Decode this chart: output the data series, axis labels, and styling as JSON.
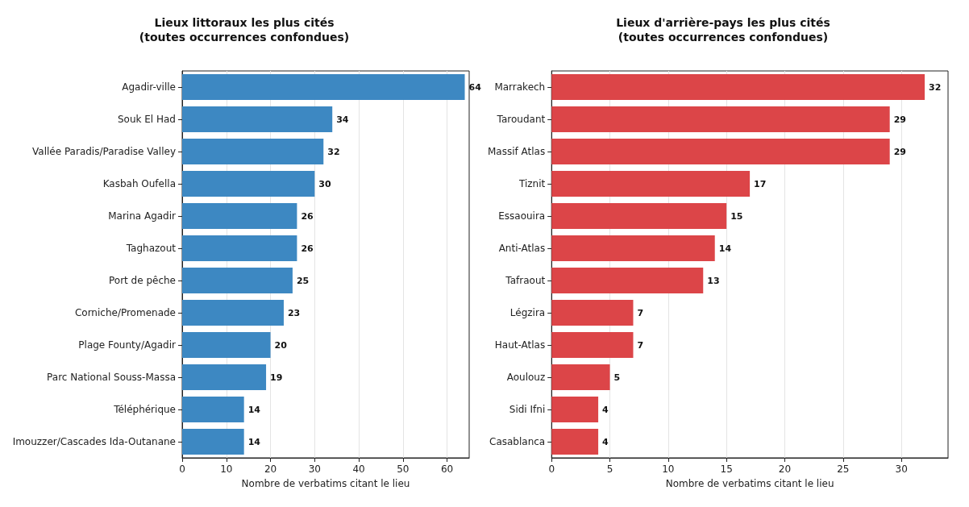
{
  "chart_data": [
    {
      "type": "bar",
      "orientation": "horizontal",
      "title": "Lieux littoraux les plus cités\n(toutes occurrences confondues)",
      "xlabel": "Nombre de verbatims citant le lieu",
      "categories": [
        "Agadir-ville",
        "Souk El Had",
        "Vallée Paradis/Paradise Valley",
        "Kasbah Oufella",
        "Marina Agadir",
        "Taghazout",
        "Port de pêche",
        "Corniche/Promenade",
        "Plage Founty/Agadir",
        "Parc National Souss-Massa",
        "Téléphérique",
        "Imouzzer/Cascades Ida-Outanane"
      ],
      "values": [
        64,
        34,
        32,
        30,
        26,
        26,
        25,
        23,
        20,
        19,
        14,
        14
      ],
      "color": "#3d88c2",
      "xlim": [
        0,
        65
      ],
      "xticks": [
        0,
        10,
        20,
        30,
        40,
        50,
        60
      ],
      "grid": "x",
      "data_labels": true
    },
    {
      "type": "bar",
      "orientation": "horizontal",
      "title": "Lieux d'arrière-pays les plus cités\n(toutes occurrences confondues)",
      "xlabel": "Nombre de verbatims citant le lieu",
      "categories": [
        "Marrakech",
        "Taroudant",
        "Massif Atlas",
        "Tiznit",
        "Essaouira",
        "Anti-Atlas",
        "Tafraout",
        "Légzira",
        "Haut-Atlas",
        "Aoulouz",
        "Sidi Ifni",
        "Casablanca"
      ],
      "values": [
        32,
        29,
        29,
        17,
        15,
        14,
        13,
        7,
        7,
        5,
        4,
        4
      ],
      "color": "#dc4548",
      "xlim": [
        0,
        34
      ],
      "xticks": [
        0,
        5,
        10,
        15,
        20,
        25,
        30
      ],
      "grid": "x",
      "data_labels": true
    }
  ]
}
